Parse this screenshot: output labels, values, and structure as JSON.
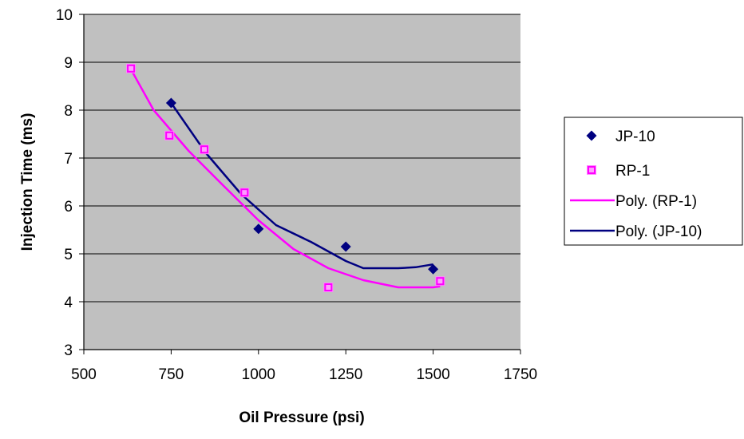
{
  "chart_data": {
    "type": "scatter",
    "xlabel": "Oil Pressure (psi)",
    "ylabel": "Injection Time (ms)",
    "xlim": [
      500,
      1750
    ],
    "ylim": [
      3,
      10
    ],
    "xticks": [
      500,
      750,
      1000,
      1250,
      1500,
      1750
    ],
    "yticks": [
      3,
      4,
      5,
      6,
      7,
      8,
      9,
      10
    ],
    "grid": "horizontal",
    "plot_background": "#c0c0c0",
    "legend_position": "right",
    "series": [
      {
        "name": "JP-10",
        "kind": "points",
        "marker": "diamond",
        "color": "#000080",
        "points": [
          [
            750,
            8.15
          ],
          [
            1000,
            5.52
          ],
          [
            1250,
            5.15
          ],
          [
            1500,
            4.68
          ]
        ]
      },
      {
        "name": "RP-1",
        "kind": "points",
        "marker": "square",
        "color": "#ff00ff",
        "points": [
          [
            635,
            8.87
          ],
          [
            745,
            7.47
          ],
          [
            845,
            7.18
          ],
          [
            960,
            6.28
          ],
          [
            1200,
            4.3
          ],
          [
            1520,
            4.43
          ]
        ]
      },
      {
        "name": "Poly. (RP-1)",
        "kind": "trendline",
        "color": "#ff00ff",
        "points": [
          [
            635,
            8.85
          ],
          [
            700,
            8.0
          ],
          [
            800,
            7.15
          ],
          [
            900,
            6.42
          ],
          [
            1000,
            5.7
          ],
          [
            1100,
            5.1
          ],
          [
            1200,
            4.7
          ],
          [
            1300,
            4.45
          ],
          [
            1400,
            4.3
          ],
          [
            1500,
            4.3
          ],
          [
            1520,
            4.32
          ]
        ]
      },
      {
        "name": "Poly. (JP-10)",
        "kind": "trendline",
        "color": "#000080",
        "points": [
          [
            750,
            8.15
          ],
          [
            850,
            7.1
          ],
          [
            950,
            6.25
          ],
          [
            1050,
            5.6
          ],
          [
            1150,
            5.25
          ],
          [
            1250,
            4.85
          ],
          [
            1300,
            4.7
          ],
          [
            1400,
            4.7
          ],
          [
            1450,
            4.72
          ],
          [
            1500,
            4.78
          ]
        ]
      }
    ]
  }
}
